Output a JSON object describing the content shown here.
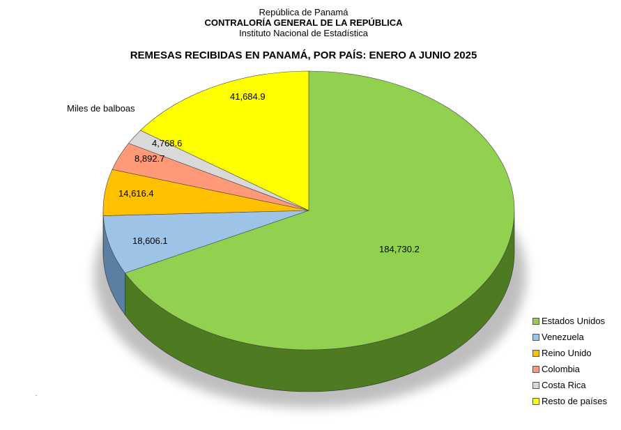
{
  "header": {
    "line1": "República de Panamá",
    "line2": "CONTRALORÍA GENERAL DE LA REPÚBLICA",
    "line3": "Instituto Nacional de Estadística"
  },
  "chart_data": {
    "type": "pie",
    "title": "REMESAS RECIBIDAS EN PANAMÁ, POR PAÍS: ENERO A JUNIO 2025",
    "unit_label": "Miles de balboas",
    "legend_position": "bottom-right",
    "categories": [
      "Estados Unidos",
      "Venezuela",
      "Reino Unido",
      "Colombia",
      "Costa Rica",
      "Resto de países"
    ],
    "values": [
      184730.2,
      18606.1,
      14616.4,
      8892.7,
      4768.6,
      41684.9
    ],
    "value_labels": [
      "184,730.2",
      "18,606.1",
      "14,616.4",
      "8,892.7",
      "4,768.6",
      "41,684.9"
    ],
    "colors": [
      "#92D050",
      "#9DC3E6",
      "#FFC000",
      "#FF9978",
      "#D9D9D9",
      "#FFFF00"
    ],
    "side_colors": [
      "#4E7A22",
      "#5A7FA3",
      "#B38600",
      "#B3644A",
      "#8F8F8F",
      "#B3B300"
    ]
  }
}
